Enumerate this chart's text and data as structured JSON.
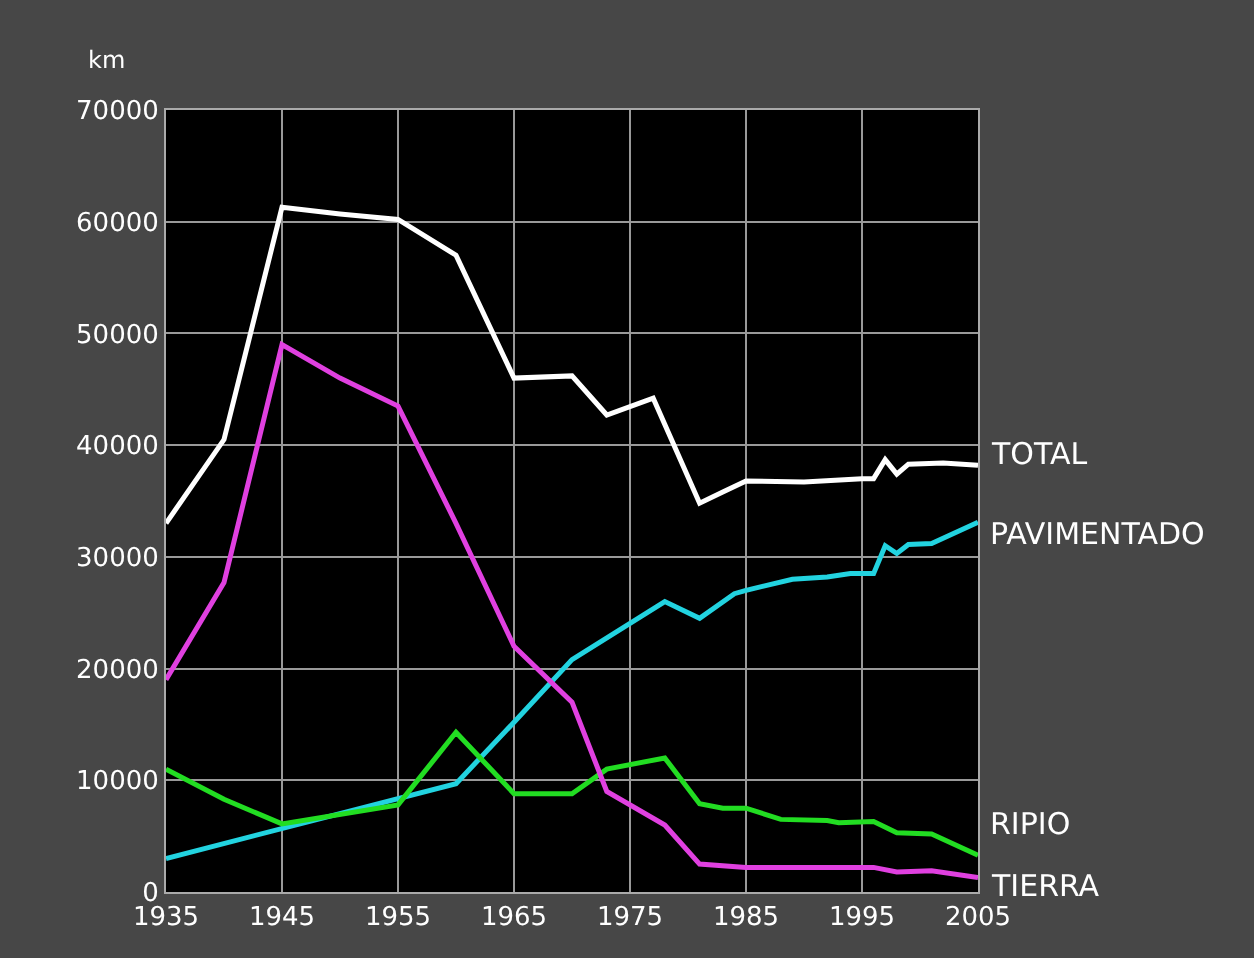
{
  "chart_data": {
    "type": "line",
    "ylabel": "km",
    "xlim": [
      1935,
      2005
    ],
    "xticks": [
      1935,
      1945,
      1955,
      1965,
      1975,
      1985,
      1995,
      2005
    ],
    "ylim": [
      0,
      70000
    ],
    "yticks": [
      0,
      10000,
      20000,
      30000,
      40000,
      50000,
      60000,
      70000
    ],
    "grid": true,
    "legend": false,
    "series": [
      {
        "name": "TOTAL",
        "color": "#ffffff",
        "x": [
          1935,
          1940,
          1945,
          1950,
          1955,
          1960,
          1965,
          1970,
          1973,
          1977,
          1981,
          1983,
          1985,
          1990,
          1995,
          1996,
          1997,
          1998,
          1999,
          2002,
          2005
        ],
        "values": [
          33000,
          40500,
          61300,
          60700,
          60200,
          57000,
          46000,
          46200,
          42700,
          44200,
          34800,
          35800,
          36800,
          36700,
          37000,
          37000,
          38700,
          37400,
          38300,
          38400,
          38200
        ]
      },
      {
        "name": "PAVIMENTADO",
        "color": "#22d3e0",
        "x": [
          1935,
          1960,
          1965,
          1970,
          1978,
          1981,
          1984,
          1985,
          1989,
          1992,
          1994,
          1996,
          1997,
          1998,
          1999,
          2001,
          2005
        ],
        "values": [
          3000,
          9700,
          15200,
          20800,
          26000,
          24500,
          26700,
          27000,
          28000,
          28200,
          28500,
          28500,
          31000,
          30300,
          31100,
          31200,
          33100
        ]
      },
      {
        "name": "RIPIO",
        "color": "#22dd22",
        "x": [
          1935,
          1940,
          1945,
          1955,
          1960,
          1965,
          1970,
          1973,
          1978,
          1981,
          1983,
          1985,
          1988,
          1992,
          1993,
          1996,
          1998,
          2001,
          2005
        ],
        "values": [
          11000,
          8300,
          6100,
          7800,
          14300,
          8800,
          8800,
          11000,
          12000,
          7900,
          7500,
          7500,
          6500,
          6400,
          6200,
          6300,
          5300,
          5200,
          3300
        ]
      },
      {
        "name": "TIERRA",
        "color": "#e040e0",
        "x": [
          1935,
          1940,
          1945,
          1950,
          1955,
          1960,
          1965,
          1970,
          1973,
          1978,
          1981,
          1985,
          1996,
          1998,
          2001,
          2005
        ],
        "values": [
          19000,
          27700,
          49000,
          46000,
          43500,
          33000,
          22000,
          17000,
          9000,
          6000,
          2500,
          2200,
          2200,
          1800,
          1900,
          1300
        ]
      }
    ]
  }
}
